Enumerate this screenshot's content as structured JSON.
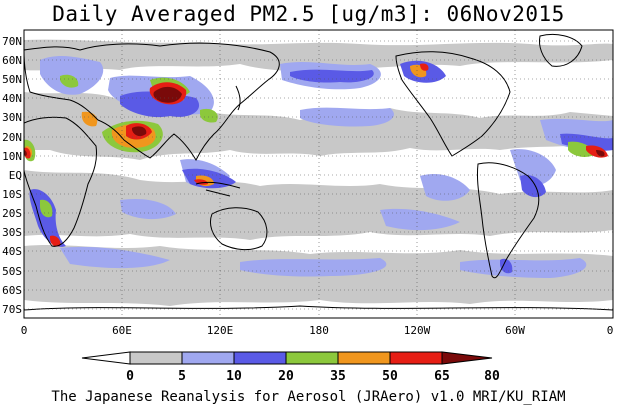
{
  "title": "Daily Averaged PM2.5 [ug/m3]: 06Nov2015",
  "footer": "The Japanese Reanalysis for Aerosol (JRAero) v1.0 MRI/KU_RIAM",
  "lat_labels": [
    "70N",
    "60N",
    "50N",
    "40N",
    "30N",
    "20N",
    "10N",
    "EQ",
    "10S",
    "20S",
    "30S",
    "40S",
    "50S",
    "60S",
    "70S"
  ],
  "lon_labels": [
    "0",
    "60E",
    "120E",
    "180",
    "120W",
    "60W",
    "0"
  ],
  "colorbar": {
    "tick_labels": [
      "0",
      "5",
      "10",
      "20",
      "35",
      "50",
      "65",
      "80"
    ],
    "colors": [
      "#ffffff",
      "#c8c8c8",
      "#a0a8f0",
      "#5a5ae6",
      "#8cc83c",
      "#f0961e",
      "#e61e14",
      "#7a0a0a"
    ]
  },
  "colors": {
    "land_outline": "#000000",
    "grid": "#555555"
  }
}
